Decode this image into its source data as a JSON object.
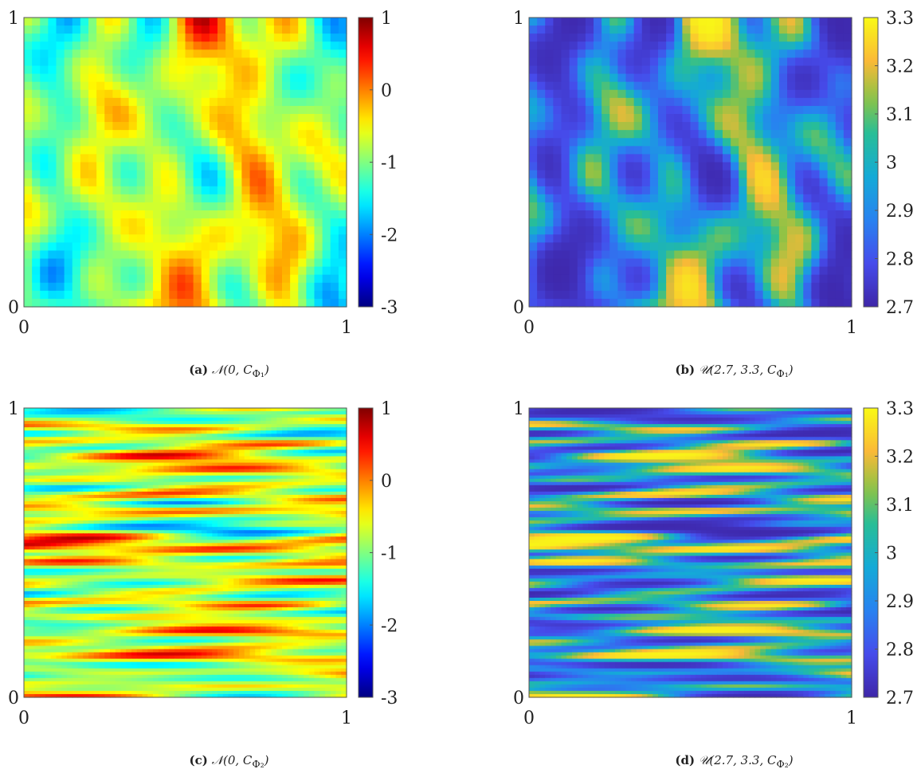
{
  "chart_data": [
    {
      "type": "heatmap",
      "panel_label": "(a)",
      "caption_math": "𝒩(0, C",
      "caption_sub": "Φ₁",
      "caption_close": ")",
      "xlim": [
        0,
        1
      ],
      "ylim": [
        0,
        1
      ],
      "x_ticks": [
        "0",
        "1"
      ],
      "y_ticks": [
        "0",
        "1"
      ],
      "colorbar": {
        "range": [
          -3,
          1
        ],
        "ticks": [
          "1",
          "0",
          "-1",
          "-2",
          "-3"
        ],
        "colormap": "jet"
      },
      "field_pattern": "smooth isotropic blobs",
      "grid": false
    },
    {
      "type": "heatmap",
      "panel_label": "(b)",
      "caption_math": "𝒰(2.7, 3.3, C",
      "caption_sub": "Φ₁",
      "caption_close": ")",
      "xlim": [
        0,
        1
      ],
      "ylim": [
        0,
        1
      ],
      "x_ticks": [
        "0",
        "1"
      ],
      "y_ticks": [
        "0",
        "1"
      ],
      "colorbar": {
        "range": [
          2.7,
          3.3
        ],
        "ticks": [
          "3.3",
          "3.2",
          "3.1",
          "3",
          "2.9",
          "2.8",
          "2.7"
        ],
        "colormap": "parula"
      },
      "field_pattern": "smooth isotropic blobs",
      "grid": false
    },
    {
      "type": "heatmap",
      "panel_label": "(c)",
      "caption_math": "𝒩(0, C",
      "caption_sub": "Φ₂",
      "caption_close": ")",
      "xlim": [
        0,
        1
      ],
      "ylim": [
        0,
        1
      ],
      "x_ticks": [
        "0",
        "1"
      ],
      "y_ticks": [
        "0",
        "1"
      ],
      "colorbar": {
        "range": [
          -3,
          1
        ],
        "ticks": [
          "1",
          "0",
          "-1",
          "-2",
          "-3"
        ],
        "colormap": "jet"
      },
      "field_pattern": "horizontally stretched streaks",
      "grid": false
    },
    {
      "type": "heatmap",
      "panel_label": "(d)",
      "caption_math": "𝒰(2.7, 3.3, C",
      "caption_sub": "Φ₂",
      "caption_close": ")",
      "xlim": [
        0,
        1
      ],
      "ylim": [
        0,
        1
      ],
      "x_ticks": [
        "0",
        "1"
      ],
      "y_ticks": [
        "0",
        "1"
      ],
      "colorbar": {
        "range": [
          2.7,
          3.3
        ],
        "ticks": [
          "3.3",
          "3.2",
          "3.1",
          "3",
          "2.9",
          "2.8",
          "2.7"
        ],
        "colormap": "parula"
      },
      "field_pattern": "horizontally stretched streaks",
      "grid": false
    }
  ]
}
